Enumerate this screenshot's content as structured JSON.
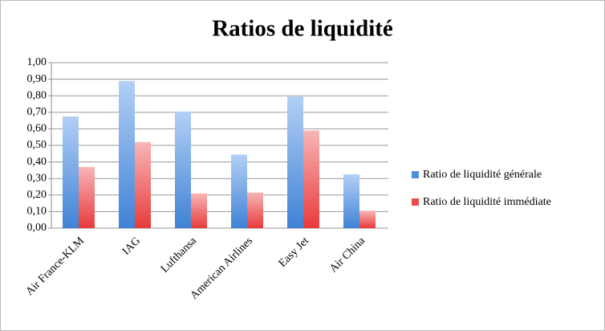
{
  "chart_data": {
    "type": "bar",
    "title": "Ratios de liquidité",
    "categories": [
      "Air France-KLM",
      "IAG",
      "Lufthansa",
      "American Airlines",
      "Easy Jet",
      "Air China"
    ],
    "series": [
      {
        "name": "Ratio de liquidité générale",
        "color": "#4f8fdc",
        "values": [
          0.675,
          0.89,
          0.705,
          0.445,
          0.795,
          0.325
        ]
      },
      {
        "name": "Ratio de liquidité immédiate",
        "color": "#ec4a4a",
        "values": [
          0.37,
          0.52,
          0.21,
          0.215,
          0.59,
          0.105
        ]
      }
    ],
    "ylim": [
      0,
      1
    ],
    "yticks": [
      {
        "value": 0,
        "label": "0,00"
      },
      {
        "value": 0.1,
        "label": "0,10"
      },
      {
        "value": 0.2,
        "label": "0,20"
      },
      {
        "value": 0.3,
        "label": "0,30"
      },
      {
        "value": 0.4,
        "label": "0,40"
      },
      {
        "value": 0.5,
        "label": "0,50"
      },
      {
        "value": 0.6,
        "label": "0,60"
      },
      {
        "value": 0.7,
        "label": "0,70"
      },
      {
        "value": 0.8,
        "label": "0,80"
      },
      {
        "value": 0.9,
        "label": "0,90"
      },
      {
        "value": 1,
        "label": "1,00"
      }
    ],
    "grid": true,
    "legend": "right"
  }
}
